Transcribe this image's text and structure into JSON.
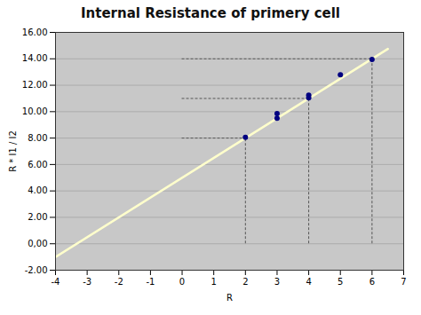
{
  "chart_data": {
    "type": "scatter",
    "title": "Internal Resistance of primery cell",
    "x_label": "R",
    "y_label": "R * I1 / I2",
    "xlim": [
      -4,
      7
    ],
    "ylim": [
      -2,
      16
    ],
    "xticks": [
      -4,
      -3,
      -2,
      -1,
      0,
      1,
      2,
      3,
      4,
      5,
      6,
      7
    ],
    "yticks": [
      {
        "value": -2,
        "label": "-2.00"
      },
      {
        "value": 0,
        "label": "0,00"
      },
      {
        "value": 2,
        "label": "2.00"
      },
      {
        "value": 4,
        "label": "4.00"
      },
      {
        "value": 6,
        "label": "6.00"
      },
      {
        "value": 8,
        "label": "8.00"
      },
      {
        "value": 10,
        "label": "10.00"
      },
      {
        "value": 12,
        "label": "12.00"
      },
      {
        "value": 14,
        "label": "14.00"
      },
      {
        "value": 16,
        "label": "16.00"
      }
    ],
    "grid": "y",
    "series": [
      {
        "type": "line",
        "color": "#ffffcc",
        "x": [
          -4,
          6.5
        ],
        "values": [
          -1.0,
          14.75
        ]
      },
      {
        "type": "droplines",
        "color": "#555555",
        "line_style": "dashed",
        "x": [
          2,
          4,
          6
        ],
        "values": [
          8.0,
          11.0,
          14.0
        ]
      },
      {
        "type": "scatter",
        "color": "#000080",
        "marker": "circle",
        "x": [
          2,
          3,
          3,
          4,
          4,
          5,
          6
        ],
        "values": [
          8.05,
          9.5,
          9.85,
          11.05,
          11.25,
          12.8,
          13.95
        ]
      }
    ]
  }
}
